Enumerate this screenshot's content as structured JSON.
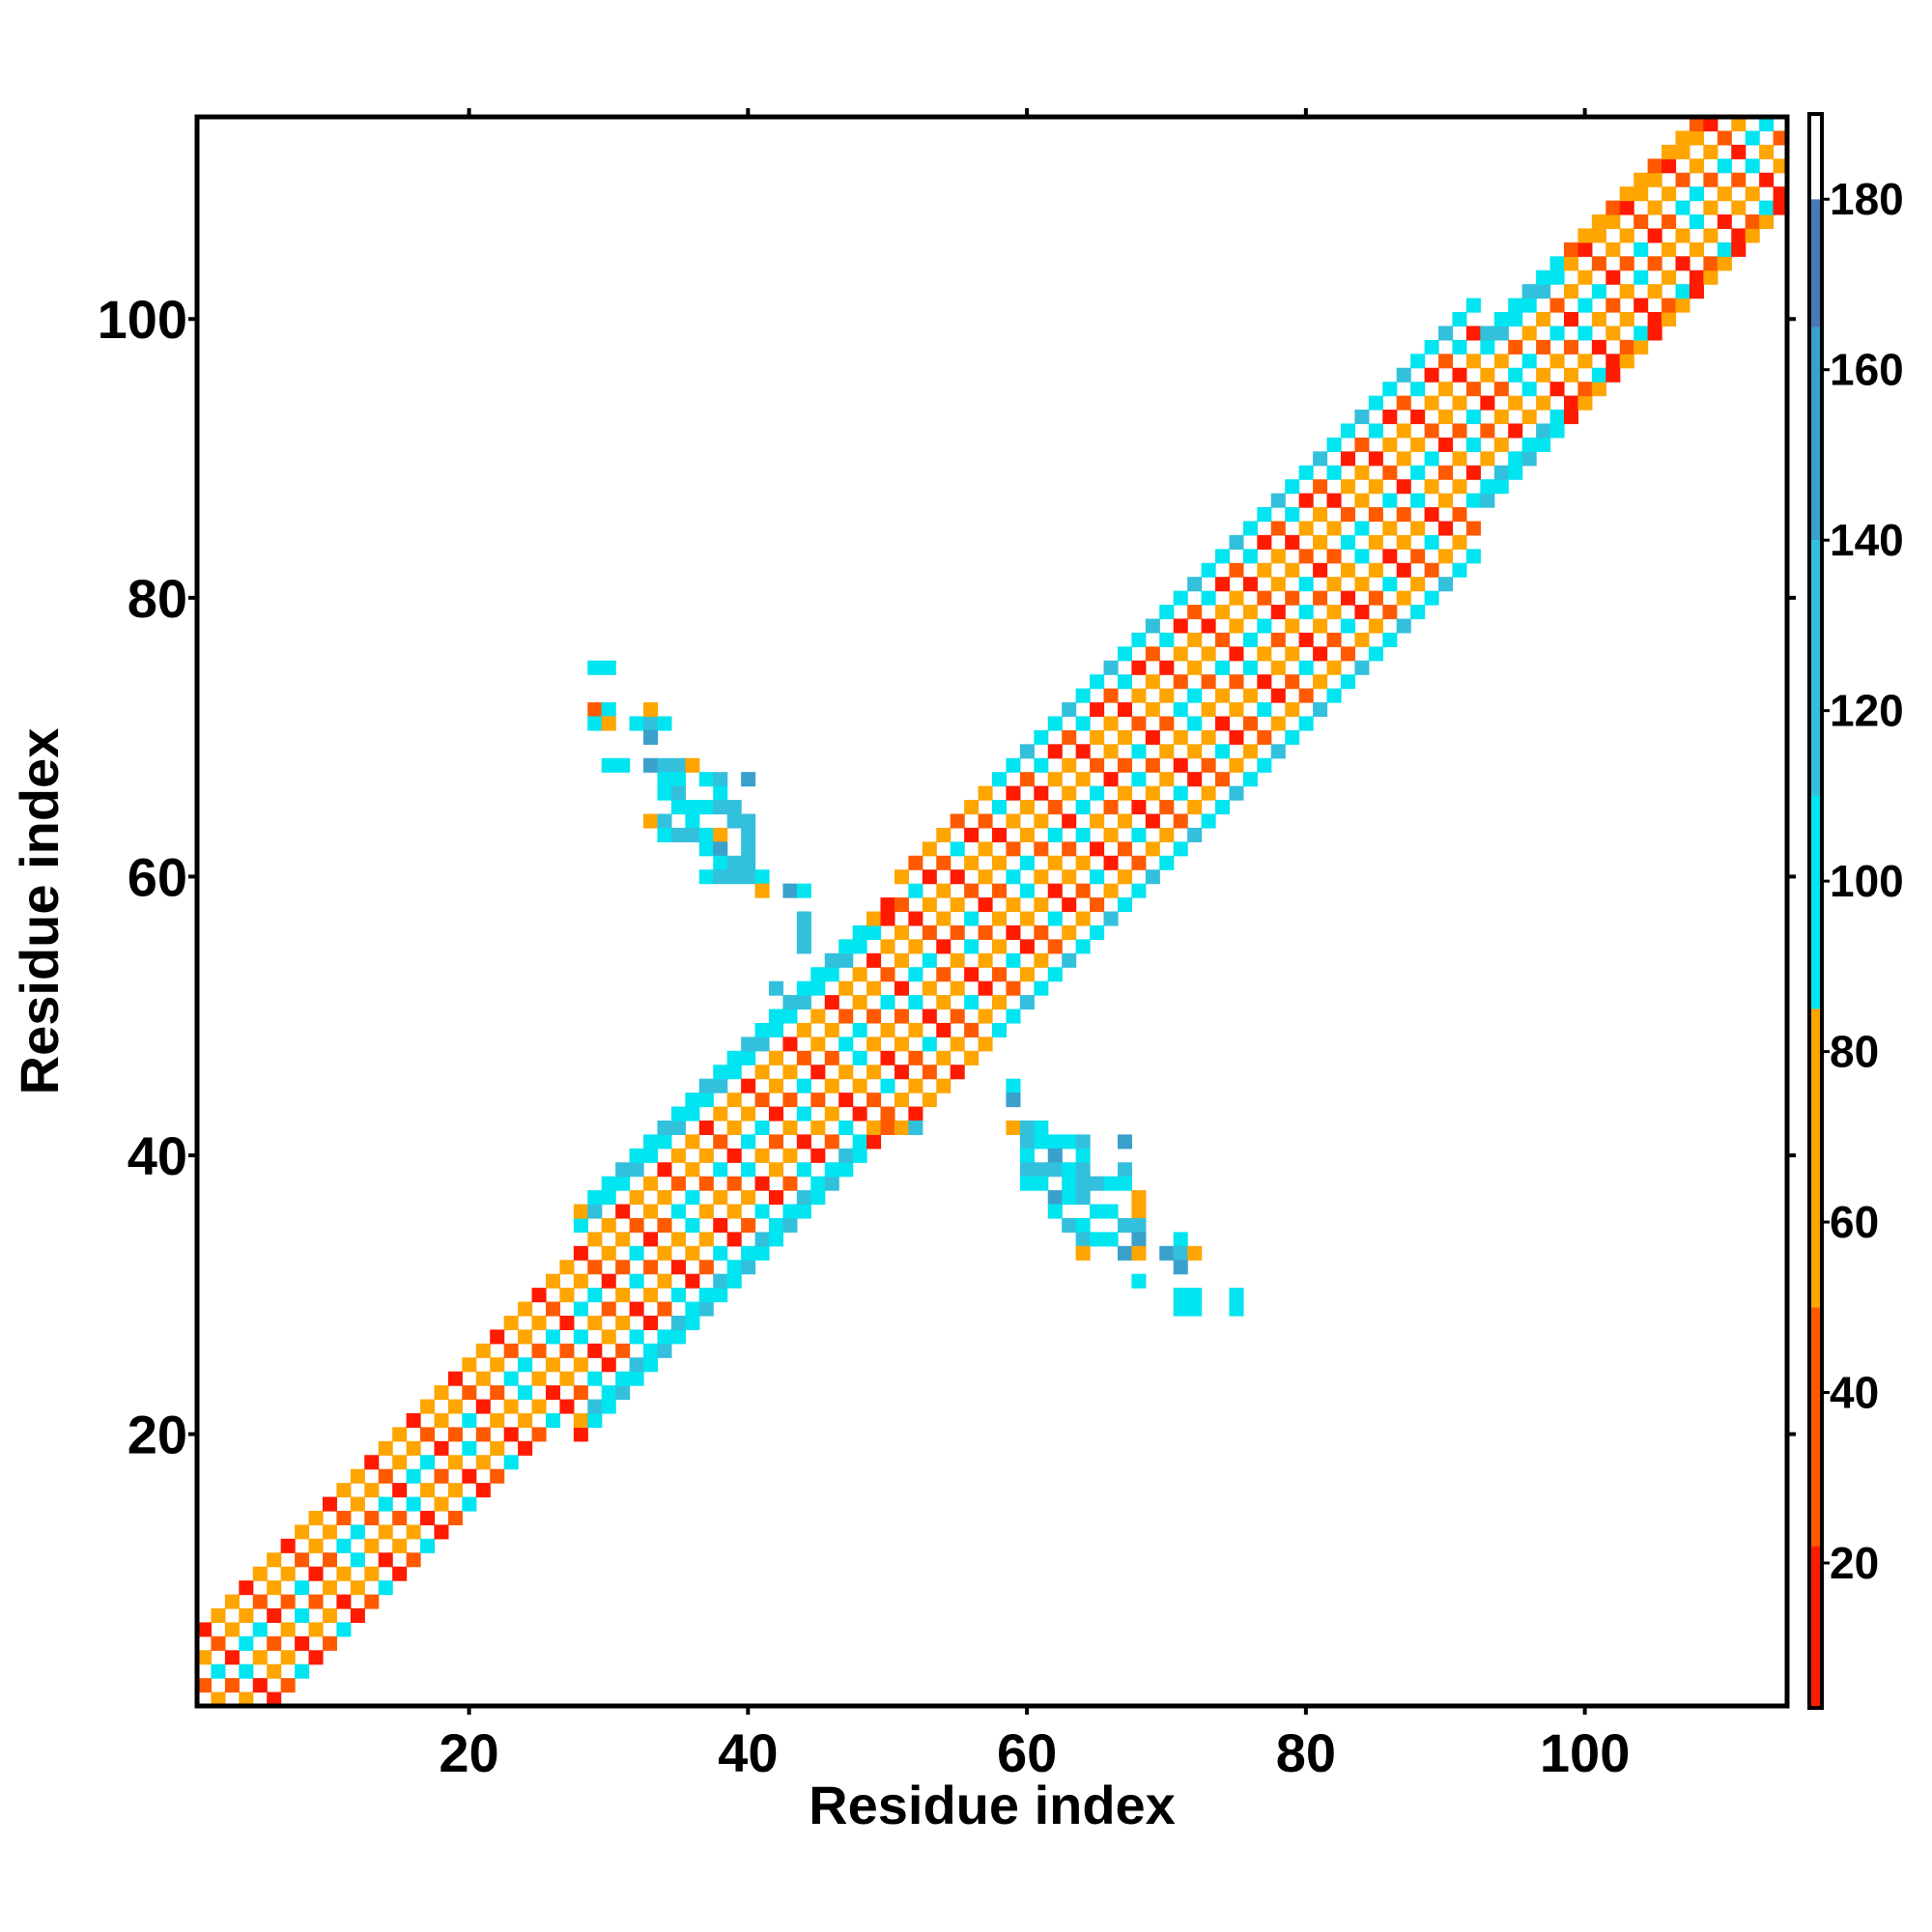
{
  "chart_data": {
    "type": "heatmap",
    "title": "",
    "xlabel": "Residue index",
    "ylabel": "Residue index",
    "xlim": [
      0.5,
      114.5
    ],
    "ylim": [
      0.5,
      114.5
    ],
    "x_ticks": [
      20,
      40,
      60,
      80,
      100
    ],
    "y_ticks": [
      20,
      40,
      60,
      80,
      100
    ],
    "grid": false,
    "colorbar": {
      "range": [
        3,
        190
      ],
      "ticks": [
        20,
        40,
        60,
        80,
        100,
        120,
        140,
        160,
        180
      ],
      "bands": [
        {
          "from": 3,
          "to": 22,
          "color": "#ff1a00"
        },
        {
          "from": 22,
          "to": 50,
          "color": "#ff5a00"
        },
        {
          "from": 50,
          "to": 85,
          "color": "#ffa500"
        },
        {
          "from": 85,
          "to": 110,
          "color": "#00e5f0"
        },
        {
          "from": 110,
          "to": 140,
          "color": "#33c0dc"
        },
        {
          "from": 140,
          "to": 165,
          "color": "#3aa0cc"
        },
        {
          "from": 165,
          "to": 180,
          "color": "#4a78b8"
        },
        {
          "from": 180,
          "to": 190,
          "color": "#ffffff"
        }
      ]
    },
    "contact_band": {
      "segments": [
        {
          "from": 1,
          "to": 27,
          "width": 5
        },
        {
          "from": 28,
          "to": 50,
          "width": 8
        },
        {
          "from": 51,
          "to": 92,
          "width": 9
        },
        {
          "from": 93,
          "to": 114,
          "width": 6
        }
      ],
      "helix_ranges": [
        [
          29,
          48
        ],
        [
          58,
          98
        ]
      ],
      "value_cycle": [
        75,
        30,
        60,
        15,
        95,
        45,
        70,
        20,
        50
      ]
    },
    "off_diagonal_cells": [
      [
        29,
        75,
        100
      ],
      [
        30,
        75,
        100
      ],
      [
        29,
        72,
        30
      ],
      [
        30,
        72,
        100
      ],
      [
        29,
        71,
        100
      ],
      [
        30,
        71,
        75
      ],
      [
        32,
        71,
        100
      ],
      [
        33,
        71,
        115
      ],
      [
        34,
        71,
        100
      ],
      [
        33,
        72,
        75
      ],
      [
        33,
        70,
        150
      ],
      [
        30,
        68,
        100
      ],
      [
        31,
        68,
        100
      ],
      [
        33,
        68,
        150
      ],
      [
        34,
        68,
        115
      ],
      [
        35,
        68,
        115
      ],
      [
        36,
        68,
        75
      ],
      [
        34,
        67,
        100
      ],
      [
        35,
        67,
        100
      ],
      [
        37,
        67,
        100
      ],
      [
        38,
        67,
        115
      ],
      [
        40,
        67,
        150
      ],
      [
        34,
        66,
        100
      ],
      [
        35,
        66,
        115
      ],
      [
        38,
        66,
        100
      ],
      [
        35,
        65,
        100
      ],
      [
        36,
        65,
        100
      ],
      [
        37,
        65,
        100
      ],
      [
        38,
        65,
        115
      ],
      [
        39,
        65,
        115
      ],
      [
        33,
        64,
        50
      ],
      [
        34,
        64,
        115
      ],
      [
        36,
        64,
        100
      ],
      [
        39,
        64,
        115
      ],
      [
        40,
        64,
        115
      ],
      [
        34,
        63,
        100
      ],
      [
        35,
        63,
        115
      ],
      [
        36,
        63,
        115
      ],
      [
        37,
        63,
        100
      ],
      [
        38,
        63,
        75
      ],
      [
        40,
        63,
        115
      ],
      [
        37,
        62,
        100
      ],
      [
        38,
        62,
        150
      ],
      [
        40,
        62,
        115
      ],
      [
        38,
        61,
        100
      ],
      [
        39,
        61,
        115
      ],
      [
        40,
        61,
        115
      ],
      [
        37,
        60,
        100
      ],
      [
        38,
        60,
        115
      ],
      [
        39,
        60,
        115
      ],
      [
        40,
        60,
        115
      ],
      [
        41,
        60,
        100
      ],
      [
        41,
        59,
        75
      ],
      [
        43,
        59,
        150
      ],
      [
        44,
        59,
        100
      ],
      [
        44,
        57,
        115
      ],
      [
        44,
        56,
        115
      ],
      [
        44,
        55,
        115
      ],
      [
        42,
        52,
        115
      ],
      [
        44,
        52,
        100
      ],
      [
        45,
        52,
        100
      ],
      [
        59,
        45,
        100
      ],
      [
        59,
        44,
        150
      ],
      [
        52,
        42,
        115
      ],
      [
        59,
        42,
        75
      ],
      [
        60,
        42,
        115
      ],
      [
        61,
        42,
        100
      ],
      [
        60,
        41,
        115
      ],
      [
        61,
        41,
        100
      ],
      [
        62,
        41,
        100
      ],
      [
        63,
        41,
        100
      ],
      [
        64,
        41,
        115
      ],
      [
        67,
        41,
        150
      ],
      [
        60,
        40,
        100
      ],
      [
        62,
        40,
        150
      ],
      [
        64,
        40,
        100
      ],
      [
        60,
        39,
        115
      ],
      [
        61,
        39,
        115
      ],
      [
        62,
        39,
        115
      ],
      [
        63,
        39,
        100
      ],
      [
        64,
        39,
        115
      ],
      [
        67,
        39,
        115
      ],
      [
        60,
        38,
        100
      ],
      [
        61,
        38,
        100
      ],
      [
        63,
        38,
        100
      ],
      [
        64,
        38,
        115
      ],
      [
        65,
        38,
        115
      ],
      [
        66,
        38,
        100
      ],
      [
        67,
        38,
        100
      ],
      [
        62,
        37,
        150
      ],
      [
        63,
        37,
        100
      ],
      [
        64,
        37,
        115
      ],
      [
        68,
        37,
        75
      ],
      [
        62,
        36,
        100
      ],
      [
        65,
        36,
        100
      ],
      [
        66,
        36,
        100
      ],
      [
        68,
        36,
        75
      ],
      [
        63,
        35,
        115
      ],
      [
        64,
        35,
        100
      ],
      [
        67,
        35,
        115
      ],
      [
        68,
        35,
        115
      ],
      [
        64,
        34,
        115
      ],
      [
        65,
        34,
        100
      ],
      [
        66,
        34,
        100
      ],
      [
        68,
        34,
        150
      ],
      [
        71,
        34,
        100
      ],
      [
        64,
        33,
        75
      ],
      [
        67,
        33,
        150
      ],
      [
        68,
        33,
        75
      ],
      [
        70,
        33,
        150
      ],
      [
        71,
        33,
        115
      ],
      [
        72,
        33,
        75
      ],
      [
        71,
        32,
        150
      ],
      [
        68,
        31,
        100
      ],
      [
        71,
        30,
        100
      ],
      [
        72,
        30,
        100
      ],
      [
        75,
        30,
        100
      ],
      [
        71,
        29,
        100
      ],
      [
        72,
        29,
        100
      ],
      [
        75,
        29,
        100
      ]
    ]
  }
}
